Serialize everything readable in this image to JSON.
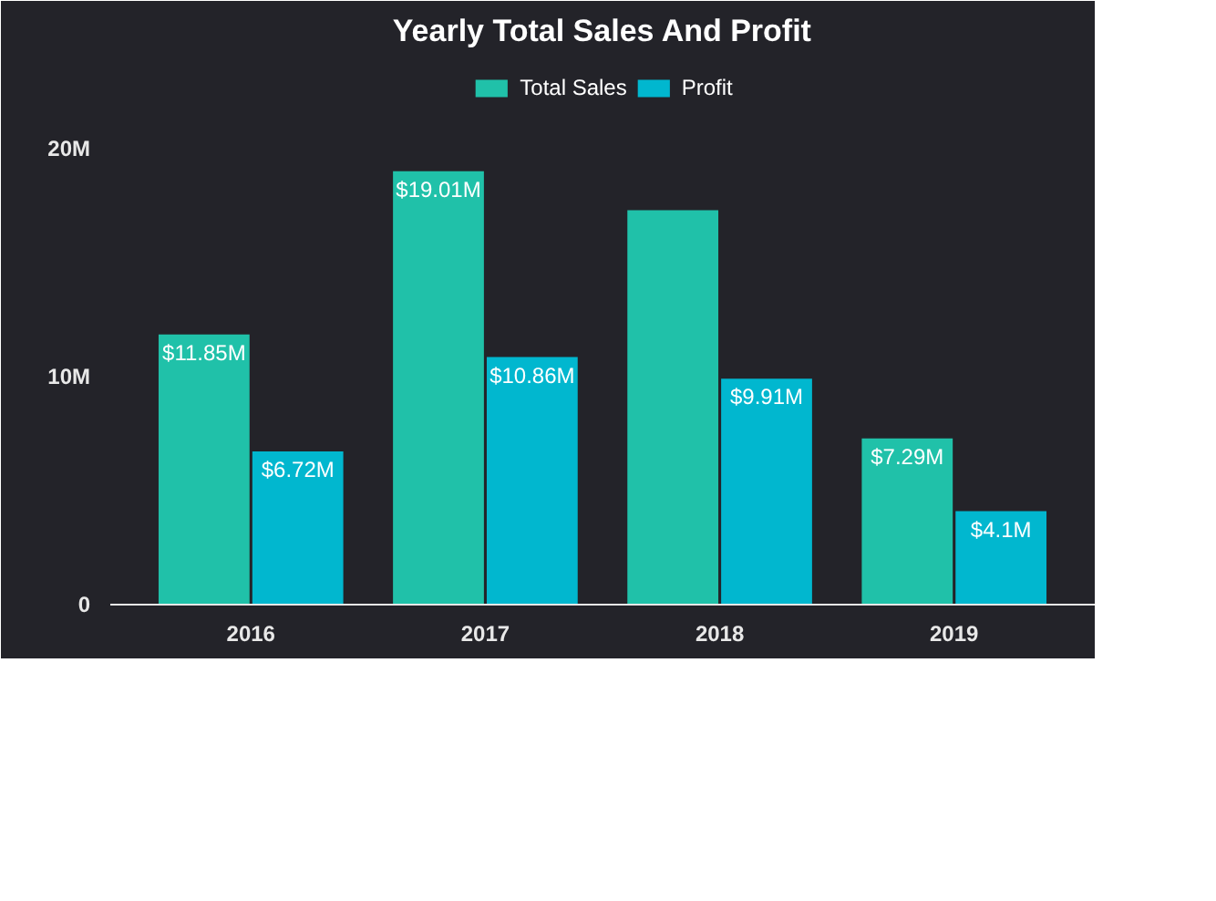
{
  "chart_data": {
    "type": "bar",
    "title": "Yearly Total Sales And Profit",
    "categories": [
      "2016",
      "2017",
      "2018",
      "2019"
    ],
    "series": [
      {
        "name": "Total Sales",
        "color": "#20c1a9",
        "values": [
          11.85,
          19.01,
          17.3,
          7.29
        ],
        "value_labels": [
          "$11.85M",
          "$19.01M",
          null,
          "$7.29M"
        ]
      },
      {
        "name": "Profit",
        "color": "#01b7cf",
        "values": [
          6.72,
          10.86,
          9.91,
          4.1
        ],
        "value_labels": [
          "$6.72M",
          "$10.86M",
          "$9.91M",
          "$4.1M"
        ]
      }
    ],
    "ylim": [
      0,
      24
    ],
    "yticks": [
      0,
      {
        "value": 10,
        "label": "10M"
      },
      {
        "value": 20,
        "label": "20M"
      }
    ],
    "grid": false,
    "legend": "top"
  }
}
